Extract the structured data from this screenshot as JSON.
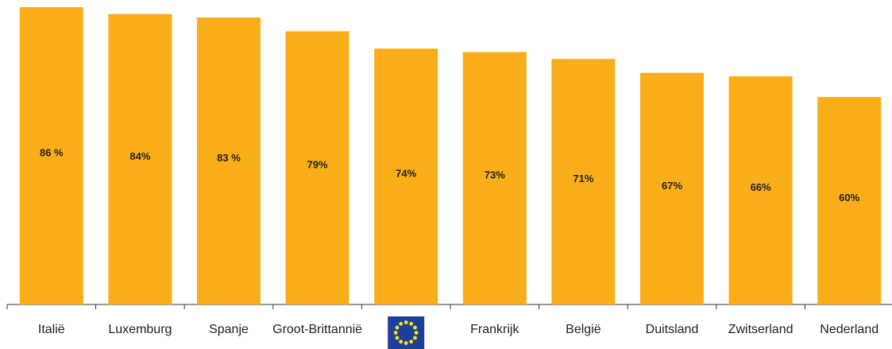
{
  "chart_data": {
    "type": "bar",
    "categories": [
      "Italië",
      "Luxemburg",
      "Spanje",
      "Groot-Brittannië",
      null,
      "Frankrijk",
      "België",
      "Duitsland",
      "Zwitserland",
      "Nederland"
    ],
    "values": [
      86,
      84,
      83,
      79,
      74,
      73,
      71,
      67,
      66,
      60
    ],
    "value_labels": [
      "86 %",
      "84%",
      "83 %",
      "79%",
      "74%",
      "73%",
      "71%",
      "67%",
      "66%",
      "60%"
    ],
    "color": "#f9ad19"
  }
}
